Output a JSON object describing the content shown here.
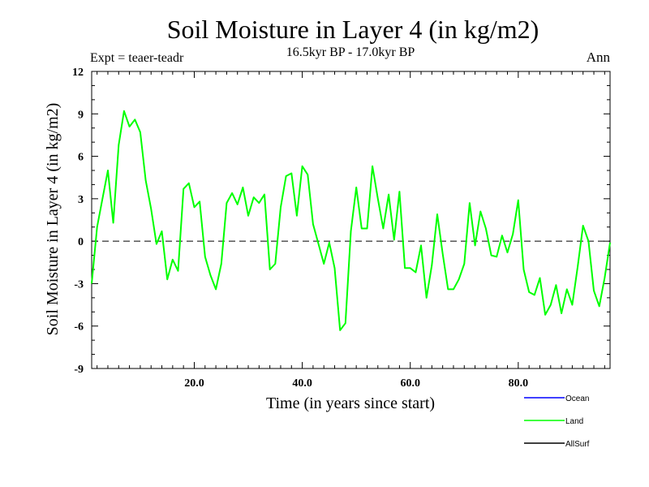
{
  "chart_data": {
    "type": "line",
    "title": "Soil Moisture in Layer 4 (in kg/m2)",
    "subtitle": "16.5kyr BP - 17.0kyr BP",
    "expt_label": "Expt = teaer-teadr",
    "season_label": "Ann",
    "xlabel": "Time (in years since start)",
    "ylabel": "Soil Moisture in Layer 4 (in kg/m2)",
    "xlim": [
      1,
      97
    ],
    "ylim": [
      -9,
      12
    ],
    "xticks": [
      20,
      40,
      60,
      80
    ],
    "xtick_labels": [
      "20.0",
      "40.0",
      "60.0",
      "80.0"
    ],
    "yticks": [
      -9,
      -6,
      -3,
      0,
      3,
      6,
      9,
      12
    ],
    "ytick_labels": [
      "-9",
      "-6",
      "-3",
      "0",
      "3",
      "6",
      "9",
      "12"
    ],
    "zero_line": "dashed",
    "legend": [
      {
        "name": "Ocean",
        "color": "#0000ff"
      },
      {
        "name": "Land",
        "color": "#00ff00"
      },
      {
        "name": "AllSurf",
        "color": "#000000"
      }
    ],
    "series": [
      {
        "name": "Land",
        "color": "#00ff00",
        "x": [
          1,
          2,
          3,
          4,
          5,
          6,
          7,
          8,
          9,
          10,
          11,
          12,
          13,
          14,
          15,
          16,
          17,
          18,
          19,
          20,
          21,
          22,
          23,
          24,
          25,
          26,
          27,
          28,
          29,
          30,
          31,
          32,
          33,
          34,
          35,
          36,
          37,
          38,
          39,
          40,
          41,
          42,
          43,
          44,
          45,
          46,
          47,
          48,
          49,
          50,
          51,
          52,
          53,
          54,
          55,
          56,
          57,
          58,
          59,
          60,
          61,
          62,
          63,
          64,
          65,
          66,
          67,
          68,
          69,
          70,
          71,
          72,
          73,
          74,
          75,
          76,
          77,
          78,
          79,
          80,
          81,
          82,
          83,
          84,
          85,
          86,
          87,
          88,
          89,
          90,
          91,
          92,
          93,
          94,
          95,
          96,
          97
        ],
        "values": [
          -3.0,
          1.0,
          3.0,
          5.0,
          1.3,
          6.8,
          9.2,
          8.1,
          8.6,
          7.7,
          4.3,
          2.3,
          -0.2,
          0.7,
          -2.7,
          -1.3,
          -2.1,
          3.7,
          4.1,
          2.4,
          2.8,
          -1.1,
          -2.4,
          -3.4,
          -1.6,
          2.7,
          3.4,
          2.6,
          3.8,
          1.8,
          3.1,
          2.7,
          3.3,
          -2.0,
          -1.6,
          2.4,
          4.6,
          4.8,
          1.8,
          5.3,
          4.7,
          1.2,
          -0.2,
          -1.6,
          -0.1,
          -1.9,
          -6.3,
          -5.8,
          0.7,
          3.8,
          0.9,
          0.9,
          5.3,
          3.0,
          0.9,
          3.3,
          0.1,
          3.5,
          -1.9,
          -1.9,
          -2.2,
          -0.3,
          -4.0,
          -1.7,
          1.9,
          -0.9,
          -3.4,
          -3.4,
          -2.7,
          -1.6,
          2.7,
          -0.3,
          2.1,
          0.9,
          -1.0,
          -1.1,
          0.4,
          -0.8,
          0.5,
          2.9,
          -2.0,
          -3.6,
          -3.8,
          -2.6,
          -5.2,
          -4.5,
          -3.1,
          -5.1,
          -3.4,
          -4.5,
          -1.8,
          1.1,
          0.0,
          -3.5,
          -4.6,
          -2.6,
          -0.1
        ]
      }
    ]
  }
}
